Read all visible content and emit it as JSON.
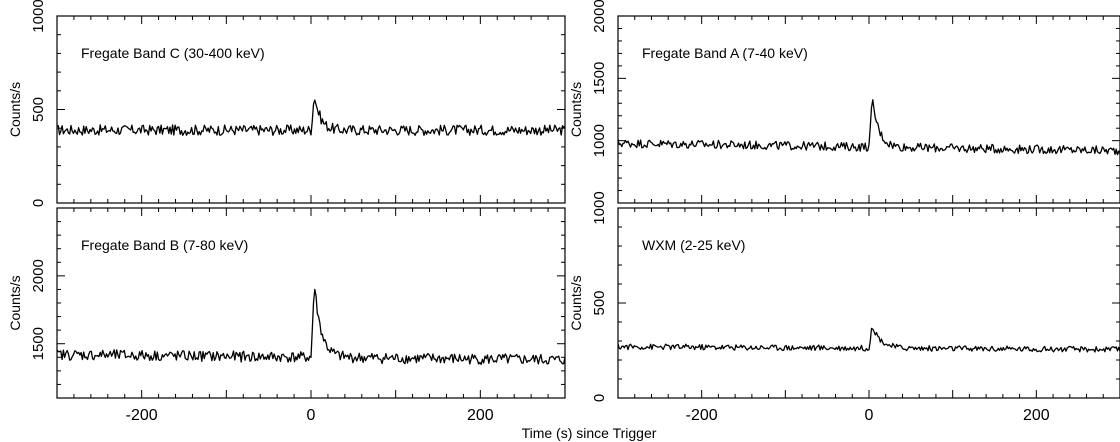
{
  "figure": {
    "shared_xlabel": "Time (s) since Trigger"
  },
  "chart_data": [
    {
      "type": "line",
      "title": "Fregate Band C (30-400 keV)",
      "ylabel": "Counts/s",
      "xlim": [
        -300,
        300
      ],
      "ylim": [
        0,
        1000
      ],
      "xticks": [],
      "yticks": [
        0,
        500,
        1000
      ],
      "baseline": 390,
      "noise": 28,
      "peak": {
        "x": 4,
        "y": 580,
        "decay": 7
      },
      "trend": 0
    },
    {
      "type": "line",
      "title": "Fregate Band A (7-40 keV)",
      "ylabel": "Counts/s",
      "xlim": [
        -300,
        300
      ],
      "ylim": [
        500,
        2000
      ],
      "xticks": [],
      "yticks": [
        1000,
        1500,
        2000
      ],
      "baseline": 980,
      "noise": 35,
      "peak": {
        "x": 4,
        "y": 1360,
        "decay": 8
      },
      "trend": -60
    },
    {
      "type": "line",
      "title": "Fregate Band B (7-80 keV)",
      "ylabel": "Counts/s",
      "xlim": [
        -300,
        300
      ],
      "ylim": [
        1100,
        2500
      ],
      "xticks": [
        -200,
        0,
        200
      ],
      "yticks": [
        1500,
        2000
      ],
      "baseline": 1420,
      "noise": 40,
      "peak": {
        "x": 4,
        "y": 1960,
        "decay": 8
      },
      "trend": -40
    },
    {
      "type": "line",
      "title": "WXM (2-25 keV)",
      "ylabel": "Counts/s",
      "xlim": [
        -300,
        300
      ],
      "ylim": [
        0,
        1000
      ],
      "xticks": [
        -200,
        0,
        200
      ],
      "yticks": [
        0,
        500,
        1000
      ],
      "baseline": 270,
      "noise": 15,
      "peak": {
        "x": 4,
        "y": 390,
        "decay": 10
      },
      "trend": -15
    }
  ]
}
